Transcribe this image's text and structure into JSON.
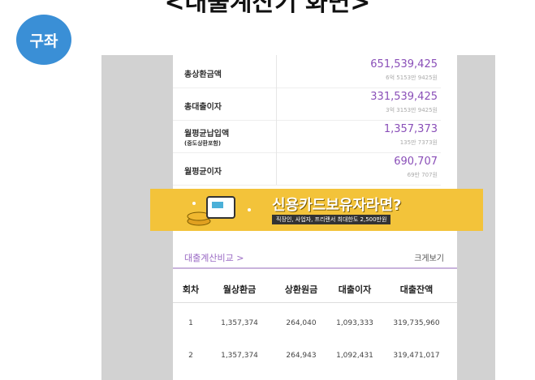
{
  "header": {
    "title": "<대출계산기 화면>",
    "badge": "구좌"
  },
  "summary": [
    {
      "label": "총상환금액",
      "value": "651,539,425",
      "sub": "6억 5153만 9425원"
    },
    {
      "label": "총대출이자",
      "value": "331,539,425",
      "sub": "3억 3153만 9425원"
    },
    {
      "label": "월평균납입액",
      "note": "(중도상환포함)",
      "value": "1,357,373",
      "sub": "135만 7373원"
    },
    {
      "label": "월평균이자",
      "value": "690,707",
      "sub": "69만 707원"
    }
  ],
  "ad": {
    "headline": "신용카드보유자라면?",
    "sub": "직장인, 사업자, 프리랜서 최대한도 2,500만원"
  },
  "compare": {
    "link": "대출계산비교 >",
    "zoom": "크게보기"
  },
  "table": {
    "columns": [
      "회차",
      "월상환금",
      "상환원금",
      "대출이자",
      "대출잔액"
    ],
    "rows": [
      [
        "1",
        "1,357,374",
        "264,040",
        "1,093,333",
        "319,735,960"
      ],
      [
        "2",
        "1,357,374",
        "264,943",
        "1,092,431",
        "319,471,017"
      ]
    ]
  }
}
